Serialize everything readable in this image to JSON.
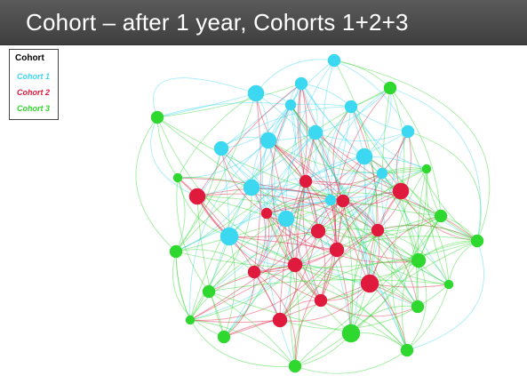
{
  "title": "Cohort – after 1 year, Cohorts 1+2+3",
  "legend": {
    "title": "Cohort",
    "items": [
      {
        "label": "Cohort 1",
        "color": "#3cd7f0"
      },
      {
        "label": "Cohort 2",
        "color": "#e01a3c"
      },
      {
        "label": "Cohort 3",
        "color": "#2ed82e"
      }
    ]
  },
  "network": {
    "colors": {
      "1": "#3cd7f0",
      "2": "#e01a3c",
      "3": "#2ed82e"
    },
    "node_counts": {
      "1": 15,
      "2": 13,
      "3": 16
    },
    "edge_style": "curved, semi-transparent, colored by source cohort"
  }
}
